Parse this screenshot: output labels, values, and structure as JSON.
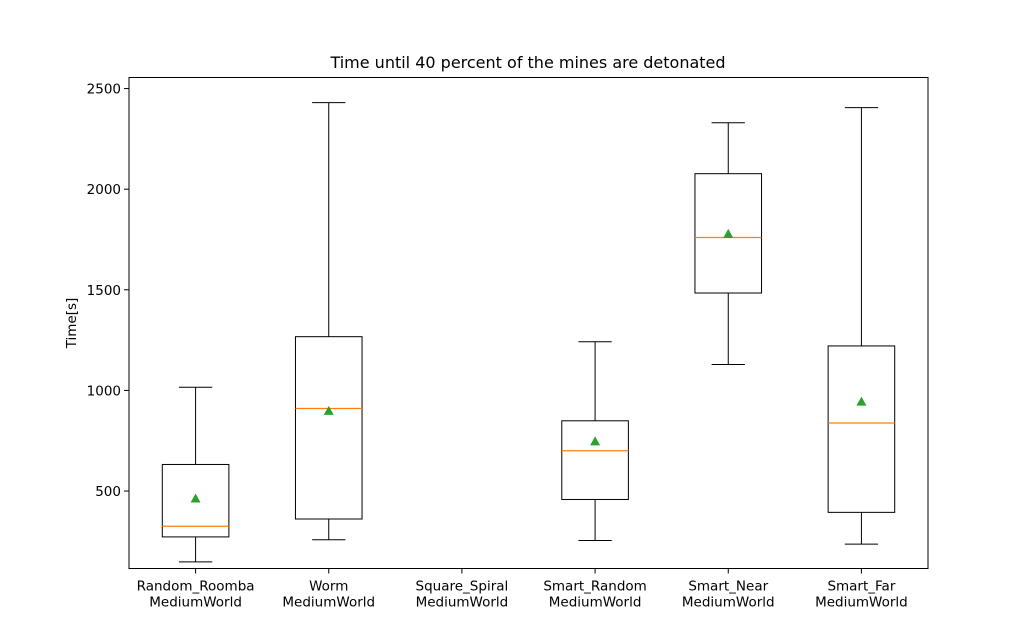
{
  "chart_data": {
    "type": "boxplot",
    "title": "Time until 40 percent of the mines are detonated",
    "xlabel": "",
    "ylabel": "Time[s]",
    "ylim": [
      115,
      2555
    ],
    "yticks": [
      500,
      1000,
      1500,
      2000,
      2500
    ],
    "grid": false,
    "categories": [
      [
        "Random_Roomba",
        "MediumWorld"
      ],
      [
        "Worm",
        "MediumWorld"
      ],
      [
        "Square_Spiral",
        "MediumWorld"
      ],
      [
        "Smart_Random",
        "MediumWorld"
      ],
      [
        "Smart_Near",
        "MediumWorld"
      ],
      [
        "Smart_Far",
        "MediumWorld"
      ]
    ],
    "boxes": [
      {
        "whislo": 148,
        "q1": 272,
        "med": 325,
        "q3": 632,
        "whishi": 1016,
        "mean": 463
      },
      {
        "whislo": 258,
        "q1": 361,
        "med": 910,
        "q3": 1267,
        "whishi": 2430,
        "mean": 898
      },
      null,
      {
        "whislo": 254,
        "q1": 458,
        "med": 700,
        "q3": 849,
        "whishi": 1242,
        "mean": 747
      },
      {
        "whislo": 1129,
        "q1": 1484,
        "med": 1760,
        "q3": 2077,
        "whishi": 2330,
        "mean": 1778
      },
      {
        "whislo": 236,
        "q1": 394,
        "med": 838,
        "q3": 1221,
        "whishi": 2405,
        "mean": 944
      }
    ],
    "colors": {
      "box": "#000000",
      "median": "#ff7f0e",
      "mean": "#2ca02c"
    }
  }
}
